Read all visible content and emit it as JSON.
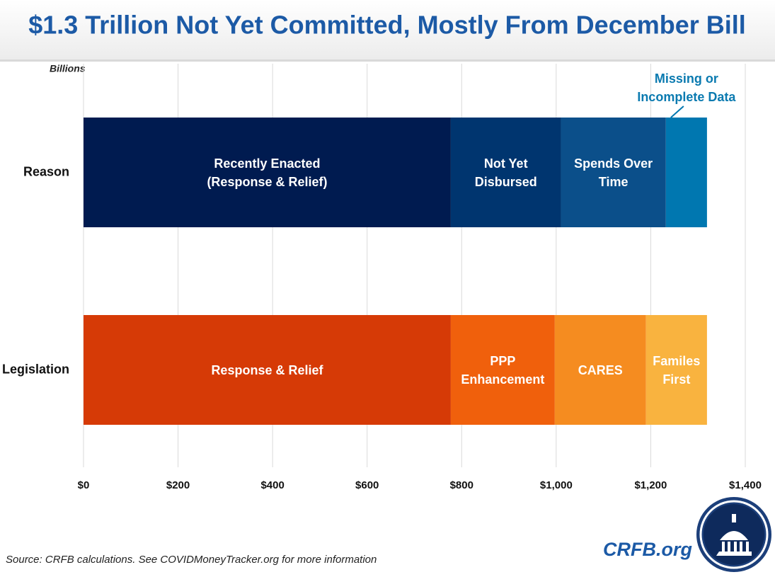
{
  "chart_data": {
    "type": "stacked-hbar",
    "title": "$1.3 Trillion Not Yet Committed, Mostly From December Bill",
    "x_label": "Billions",
    "categories": [
      "Reason",
      "Legislation"
    ],
    "series": [
      {
        "name": "Recently Enacted\n(Response & Relief)",
        "color": "#001b50",
        "values": [
          777,
          null
        ]
      },
      {
        "name": "Not Yet\nDisbursed",
        "color": "#00356f",
        "values": [
          233,
          null
        ]
      },
      {
        "name": "Spends Over\nTime",
        "color": "#0b4f8a",
        "values": [
          222,
          null
        ]
      },
      {
        "name": "Missing or\nIncomplete Data",
        "color": "#0077b0",
        "values": [
          87,
          null
        ]
      },
      {
        "name": "Response & Relief",
        "color": "#d63a06",
        "values": [
          null,
          777
        ]
      },
      {
        "name": "PPP\nEnhancement",
        "color": "#f0600c",
        "values": [
          null,
          220
        ]
      },
      {
        "name": "CARES",
        "color": "#f58c20",
        "values": [
          null,
          193
        ]
      },
      {
        "name": "Familes\nFirst",
        "color": "#f9b33f",
        "values": [
          null,
          129
        ]
      }
    ],
    "xlim": [
      0,
      1400
    ],
    "xticks": [
      {
        "value": 0,
        "label": "$0"
      },
      {
        "value": 200,
        "label": "$200"
      },
      {
        "value": 400,
        "label": "$400"
      },
      {
        "value": 600,
        "label": "$600"
      },
      {
        "value": 800,
        "label": "$800"
      },
      {
        "value": 1000,
        "label": "$1,000"
      },
      {
        "value": 1200,
        "label": "$1,200"
      },
      {
        "value": 1400,
        "label": "$1,400"
      }
    ],
    "grid": true,
    "source": "Source: CRFB calculations. See COVIDMoneyTracker.org for more information",
    "brand": "CRFB.org"
  }
}
